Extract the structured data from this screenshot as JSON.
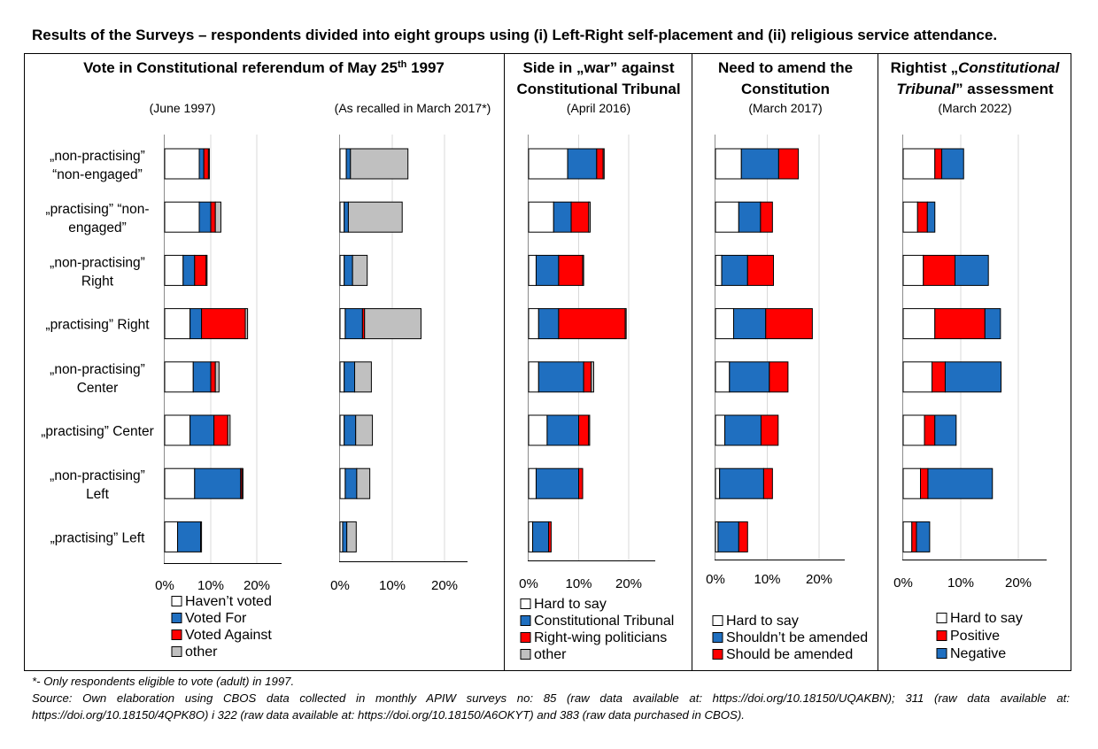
{
  "title": "Results of the Surveys – respondents divided into eight groups using (i) Left-Right self-placement and (ii) religious service attendance.",
  "groups": [
    [
      "„non-practising”",
      "“non-engaged”"
    ],
    [
      "„practising” “non-",
      "engaged”"
    ],
    [
      "„non-practising”",
      "Right"
    ],
    [
      "„practising” Right"
    ],
    [
      "„non-practising”",
      "Center"
    ],
    [
      "„practising” Center"
    ],
    [
      "„non-practising”",
      "Left"
    ],
    [
      "„practising” Left"
    ]
  ],
  "panels": [
    {
      "title_lines": [
        [
          {
            "t": "Vote in Constitutional referendum of May 25"
          },
          {
            "t": "th",
            "sup": true
          },
          {
            "t": " 1997"
          }
        ]
      ]
    },
    {
      "title_lines": [
        [
          {
            "t": "Side in „war” against"
          }
        ],
        [
          {
            "t": "Constitutional Tribunal"
          }
        ]
      ]
    },
    {
      "title_lines": [
        [
          {
            "t": "Need to amend the"
          }
        ],
        [
          {
            "t": "Constitution"
          }
        ]
      ]
    },
    {
      "title_lines": [
        [
          {
            "t": "Rightist „"
          },
          {
            "t": "Constitutional",
            "i": true
          }
        ],
        [
          {
            "t": "Tribunal",
            "i": true
          },
          {
            "t": "” assessment"
          }
        ]
      ]
    }
  ],
  "chart_data": [
    {
      "type": "bar",
      "subtitle": "(June 1997)",
      "xlim": [
        0,
        25
      ],
      "xticks": [
        "0%",
        "10%",
        "20%"
      ],
      "tick_values": [
        0,
        10,
        20
      ],
      "grid": true,
      "legend": "below",
      "categories": [
        "„non-practising” “non-engaged”",
        "„practising” “non-engaged”",
        "„non-practising” Right",
        "„practising” Right",
        "„non-practising” Center",
        "„practising” Center",
        "„non-practising” Left",
        "„practising” Left"
      ],
      "series": [
        {
          "name": "Haven’t voted",
          "color": "#ffffff",
          "values": [
            7.5,
            7.5,
            4,
            5.5,
            6.2,
            5.5,
            6.5,
            2.8
          ]
        },
        {
          "name": "Voted For",
          "color": "#1f6fc0",
          "values": [
            1,
            2.5,
            2.5,
            2.5,
            3.8,
            5.2,
            10,
            5
          ]
        },
        {
          "name": "Voted Against",
          "color": "#ff0000",
          "values": [
            1,
            1,
            2.5,
            9.5,
            1,
            3,
            0.3,
            0
          ]
        },
        {
          "name": "other",
          "color": "#c0c0c0",
          "values": [
            0.2,
            1.2,
            0.2,
            0.5,
            0.8,
            0.5,
            0.2,
            0.2
          ]
        }
      ]
    },
    {
      "type": "bar",
      "subtitle": "(As recalled in March 2017*)",
      "xlim": [
        0,
        25
      ],
      "xticks": [
        "0%",
        "10%",
        "20%"
      ],
      "tick_values": [
        0,
        10,
        20
      ],
      "grid": true,
      "categories": [
        "„non-practising” “non-engaged”",
        "„practising” “non-engaged”",
        "„non-practising” Right",
        "„practising” Right",
        "„non-practising” Center",
        "„practising” Center",
        "„non-practising” Left",
        "„practising” Left"
      ],
      "series": [
        {
          "name": "Haven’t voted",
          "color": "#ffffff",
          "values": [
            1.2,
            0.8,
            0.8,
            1,
            0.8,
            0.8,
            1,
            0.5
          ]
        },
        {
          "name": "Voted For",
          "color": "#1f6fc0",
          "values": [
            0.8,
            0.8,
            1.6,
            3.3,
            2,
            2.2,
            2.2,
            0.8
          ]
        },
        {
          "name": "Voted Against",
          "color": "#ff0000",
          "values": [
            0,
            0,
            0,
            0.4,
            0,
            0,
            0,
            0
          ]
        },
        {
          "name": "other",
          "color": "#c0c0c0",
          "values": [
            11,
            10.3,
            2.8,
            10.8,
            3.2,
            3.2,
            2.5,
            1.8
          ]
        }
      ]
    },
    {
      "type": "bar",
      "subtitle": "(April 2016)",
      "xlim": [
        0,
        25
      ],
      "xticks": [
        "0%",
        "10%",
        "20%"
      ],
      "tick_values": [
        0,
        10,
        20
      ],
      "grid": true,
      "legend": "below",
      "categories": [
        "„non-practising” “non-engaged”",
        "„practising” “non-engaged”",
        "„non-practising” Right",
        "„practising” Right",
        "„non-practising” Center",
        "„practising” Center",
        "„non-practising” Left",
        "„practising” Left"
      ],
      "series": [
        {
          "name": "Hard to say",
          "color": "#ffffff",
          "values": [
            7.8,
            5,
            1.5,
            2,
            2,
            3.7,
            1.5,
            0.8
          ]
        },
        {
          "name": "Constitutional Tribunal",
          "color": "#1f6fc0",
          "values": [
            5.8,
            3.5,
            4.5,
            4,
            9,
            6.3,
            8.5,
            3.2
          ]
        },
        {
          "name": "Right-wing politicians",
          "color": "#ff0000",
          "values": [
            1.3,
            3.5,
            4.8,
            13.3,
            1.5,
            2,
            0.8,
            0.5
          ]
        },
        {
          "name": "other",
          "color": "#c0c0c0",
          "values": [
            0.2,
            0.3,
            0.2,
            0.2,
            0.5,
            0.2,
            0,
            0
          ]
        }
      ]
    },
    {
      "type": "bar",
      "subtitle": "(March 2017)",
      "xlim": [
        0,
        25
      ],
      "xticks": [
        "0%",
        "10%",
        "20%"
      ],
      "tick_values": [
        0,
        10,
        20
      ],
      "grid": true,
      "legend": "below",
      "categories": [
        "„non-practising” “non-engaged”",
        "„practising” “non-engaged”",
        "„non-practising” Right",
        "„practising” Right",
        "„non-practising” Center",
        "„practising” Center",
        "„non-practising” Left",
        "„practising” Left"
      ],
      "series": [
        {
          "name": "Hard to say",
          "color": "#ffffff",
          "values": [
            5,
            4.5,
            1.2,
            3.5,
            2.7,
            1.8,
            0.8,
            0.5
          ]
        },
        {
          "name": "Shouldn’t be amended",
          "color": "#1f6fc0",
          "values": [
            7.2,
            4.2,
            5,
            6.2,
            7.7,
            7,
            8.5,
            4
          ]
        },
        {
          "name": "Should be amended",
          "color": "#ff0000",
          "values": [
            3.8,
            2.3,
            5,
            9,
            3.6,
            3.3,
            1.7,
            1.7
          ]
        }
      ]
    },
    {
      "type": "bar",
      "subtitle": "(March 2022)",
      "xlim": [
        0,
        25
      ],
      "xticks": [
        "0%",
        "10%",
        "20%"
      ],
      "tick_values": [
        0,
        10,
        20
      ],
      "grid": true,
      "legend": "below",
      "categories": [
        "„non-practising” “non-engaged”",
        "„practising” “non-engaged”",
        "„non-practising” Right",
        "„practising” Right",
        "„non-practising” Center",
        "„practising” Center",
        "„non-practising” Left",
        "„practising” Left"
      ],
      "series": [
        {
          "name": "Hard to say",
          "color": "#ffffff",
          "values": [
            5.5,
            2.5,
            3.5,
            5.5,
            5,
            3.7,
            3,
            1.5
          ]
        },
        {
          "name": "Positive",
          "color": "#ff0000",
          "values": [
            1.2,
            1.7,
            5.5,
            8.7,
            2.3,
            1.8,
            1.3,
            0.8
          ]
        },
        {
          "name": "Negative",
          "color": "#1f6fc0",
          "values": [
            3.8,
            1.3,
            5.8,
            2.7,
            9.7,
            3.7,
            11.2,
            2.3
          ]
        }
      ]
    }
  ],
  "footnote": {
    "line1": "*- Only respondents eligible to vote (adult) in 1997.",
    "line2": "Source: Own elaboration using CBOS data collected in monthly APIW surveys no: 85 (raw data available at: https://doi.org/10.18150/UQAKBN); 311 (raw data available at: https://doi.org/10.18150/4QPK8O) i 322 (raw data available at: https://doi.org/10.18150/A6OKYT) and 383 (raw data purchased in CBOS)."
  }
}
